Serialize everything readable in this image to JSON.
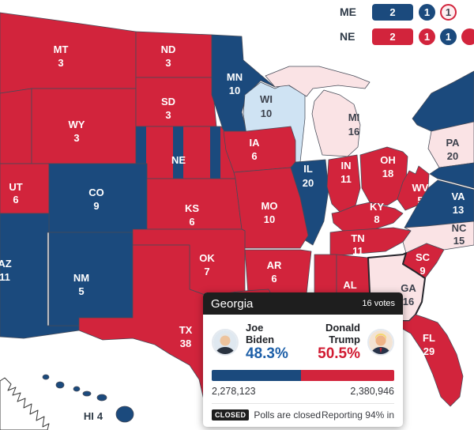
{
  "palette": {
    "rep": "#d2243c",
    "dem": "#1b4a7d",
    "lean_rep": "#fae3e5",
    "lean_dem": "#cfe3f3",
    "white": "#ffffff"
  },
  "split_votes": {
    "me": {
      "label": "ME",
      "items": [
        {
          "value": "2",
          "style": "dem",
          "shape": "rect"
        },
        {
          "value": "1",
          "style": "dem",
          "shape": "circle"
        },
        {
          "value": "1",
          "style": "outline_rep",
          "shape": "circle"
        }
      ]
    },
    "ne": {
      "label": "NE",
      "items": [
        {
          "value": "2",
          "style": "rep",
          "shape": "rect"
        },
        {
          "value": "1",
          "style": "rep",
          "shape": "circle"
        },
        {
          "value": "1",
          "style": "dem",
          "shape": "circle"
        },
        {
          "value": "",
          "style": "rep",
          "shape": "circle"
        }
      ]
    }
  },
  "map": {
    "states": {
      "MT": {
        "abbr": "MT",
        "votes": "3",
        "fill": "rep"
      },
      "ND": {
        "abbr": "ND",
        "votes": "3",
        "fill": "rep"
      },
      "SD": {
        "abbr": "SD",
        "votes": "3",
        "fill": "rep"
      },
      "MN": {
        "abbr": "MN",
        "votes": "10",
        "fill": "dem"
      },
      "WI": {
        "abbr": "WI",
        "votes": "10",
        "fill": "lean_dem"
      },
      "MI": {
        "abbr": "MI",
        "votes": "16",
        "fill": "lean_rep"
      },
      "WY": {
        "abbr": "WY",
        "votes": "3",
        "fill": "rep"
      },
      "NE": {
        "abbr": "NE",
        "votes": "",
        "fill": "stripes"
      },
      "IA": {
        "abbr": "IA",
        "votes": "6",
        "fill": "rep"
      },
      "IL": {
        "abbr": "IL",
        "votes": "20",
        "fill": "dem"
      },
      "IN": {
        "abbr": "IN",
        "votes": "11",
        "fill": "rep"
      },
      "OH": {
        "abbr": "OH",
        "votes": "18",
        "fill": "rep"
      },
      "PA": {
        "abbr": "PA",
        "votes": "20",
        "fill": "lean_rep"
      },
      "NY": {
        "abbr": "",
        "votes": "",
        "fill": "dem"
      },
      "MD": {
        "abbr": "",
        "votes": "",
        "fill": "dem"
      },
      "ID": {
        "abbr": "",
        "votes": "",
        "fill": "rep"
      },
      "UT": {
        "abbr": "UT",
        "votes": "6",
        "fill": "rep"
      },
      "CO": {
        "abbr": "CO",
        "votes": "9",
        "fill": "dem"
      },
      "KS": {
        "abbr": "KS",
        "votes": "6",
        "fill": "rep"
      },
      "MO": {
        "abbr": "MO",
        "votes": "10",
        "fill": "rep"
      },
      "KY": {
        "abbr": "KY",
        "votes": "8",
        "fill": "rep"
      },
      "WV": {
        "abbr": "WV",
        "votes": "5",
        "fill": "rep"
      },
      "VA": {
        "abbr": "VA",
        "votes": "13",
        "fill": "dem"
      },
      "NC": {
        "abbr": "NC",
        "votes": "15",
        "fill": "lean_rep"
      },
      "AZ": {
        "abbr": "AZ",
        "votes": "11",
        "fill": "dem"
      },
      "NM": {
        "abbr": "NM",
        "votes": "5",
        "fill": "dem"
      },
      "OK": {
        "abbr": "OK",
        "votes": "7",
        "fill": "rep"
      },
      "AR": {
        "abbr": "AR",
        "votes": "6",
        "fill": "rep"
      },
      "TN": {
        "abbr": "TN",
        "votes": "11",
        "fill": "rep"
      },
      "MS": {
        "abbr": "",
        "votes": "",
        "fill": "rep"
      },
      "AL": {
        "abbr": "AL",
        "votes": "",
        "fill": "rep"
      },
      "GA": {
        "abbr": "GA",
        "votes": "16",
        "fill": "lean_rep"
      },
      "SC": {
        "abbr": "SC",
        "votes": "9",
        "fill": "rep"
      },
      "FL": {
        "abbr": "FL",
        "votes": "29",
        "fill": "rep"
      },
      "TX": {
        "abbr": "TX",
        "votes": "38",
        "fill": "rep"
      },
      "HI": {
        "abbr": "HI",
        "votes": "4",
        "fill": "dem"
      },
      "AK": {
        "abbr": "",
        "votes": "",
        "fill": "white"
      }
    }
  },
  "tooltip": {
    "state_name": "Georgia",
    "votes_label": "16 votes",
    "candidates": [
      {
        "name": "Joe Biden",
        "pct": "48.3%",
        "votes": "2,278,123"
      },
      {
        "name": "Donald Trump",
        "pct": "50.5%",
        "votes": "2,380,946"
      }
    ],
    "bar": {
      "dem_width": "48.9%"
    },
    "status_badge": "CLOSED",
    "status_text": "Polls are closed",
    "reporting": "Reporting 94% in"
  }
}
